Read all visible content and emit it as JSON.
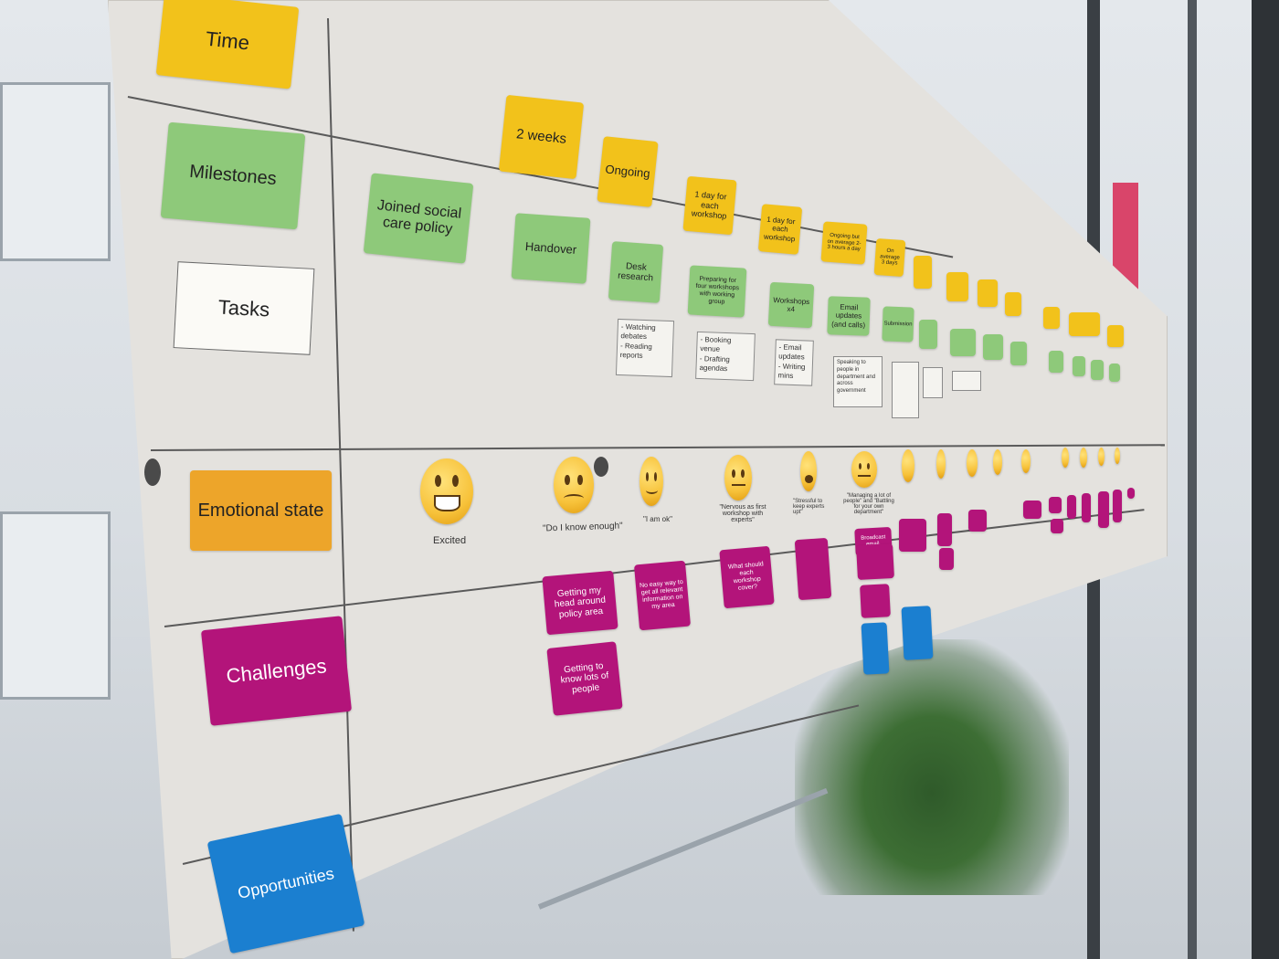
{
  "rows": {
    "time": "Time",
    "milestones": "Milestones",
    "tasks": "Tasks",
    "emotional_state": "Emotional state",
    "challenges": "Challenges",
    "opportunities": "Opportunities"
  },
  "time_notes": [
    "2 weeks",
    "Ongoing",
    "1 day for each workshop",
    "1 day for each workshop",
    "Ongoing but on average 2-3 hours a day",
    "On average 3 days"
  ],
  "milestone_notes": [
    "Joined social care policy",
    "Handover"
  ],
  "task_notes": [
    "Desk research",
    "Preparing for four workshops with working group",
    "Workshops x4",
    "Email updates (and calls)",
    "Submission"
  ],
  "task_details": [
    "- Watching debates\n- Reading reports",
    "- Booking venue\n- Drafting agendas",
    "- Email updates\n- Writing mins",
    "Speaking to people in department and across government"
  ],
  "emotion_captions": [
    "Excited",
    "\"Do I know enough\"",
    "\"I am ok\"",
    "\"Nervous as first workshop with experts\"",
    "\"Stressful to keep experts upt\"",
    "\"Managing a lot of people\" and \"Battling for your own department\""
  ],
  "challenge_notes": [
    "Getting my head around policy area",
    "Getting to know lots of people",
    "No easy way to get all relevant information on my area",
    "What should each workshop cover?",
    "Broadcast email."
  ],
  "colors": {
    "time": "#f2c21b",
    "milestone": "#8ec97a",
    "emotion": "#eda52a",
    "challenge": "#b3147a",
    "opportunity": "#1b7fd0"
  }
}
